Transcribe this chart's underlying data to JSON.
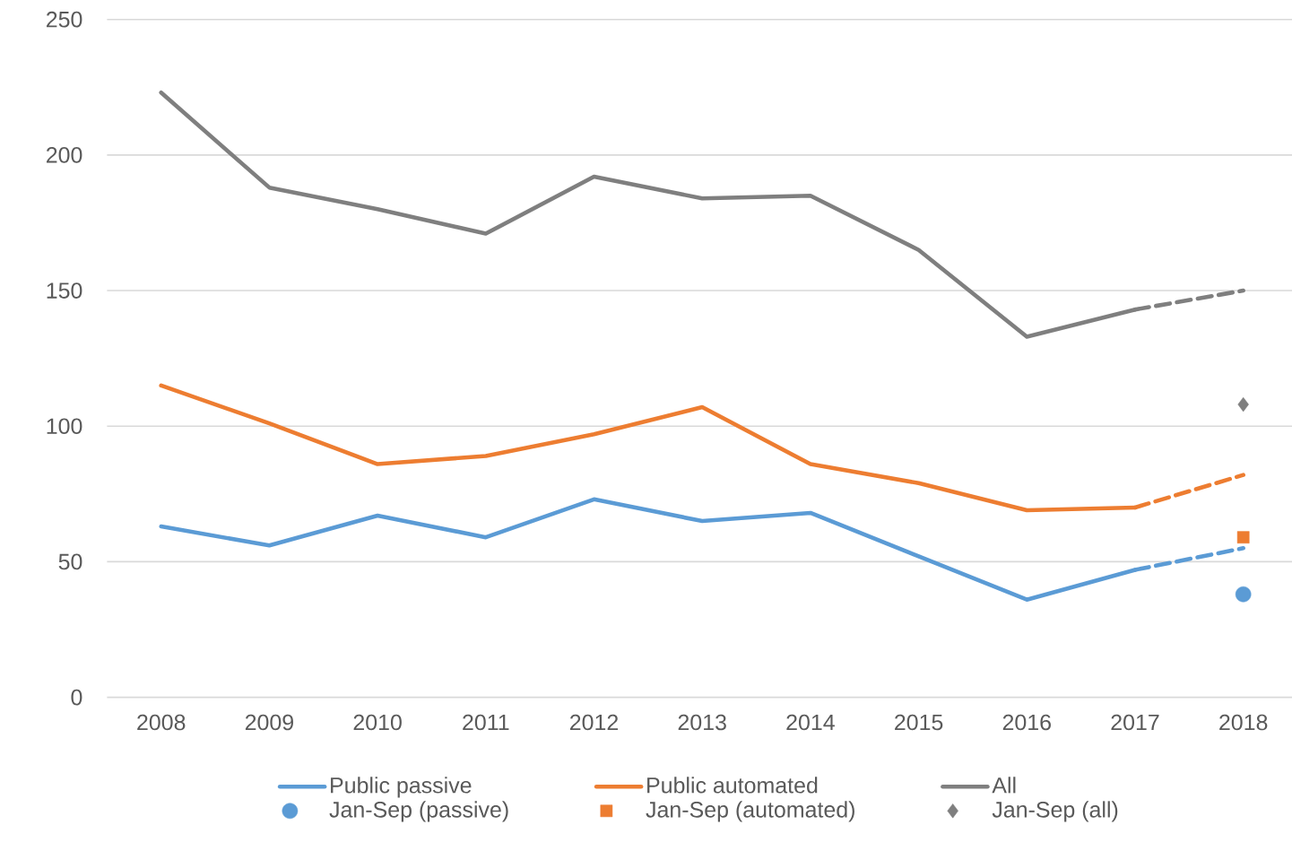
{
  "chart_data": {
    "type": "line",
    "x": [
      2008,
      2009,
      2010,
      2011,
      2012,
      2013,
      2014,
      2015,
      2016,
      2017,
      2018
    ],
    "xlim": [
      2007.5,
      2018.45
    ],
    "xticks": [
      2008,
      2009,
      2010,
      2011,
      2012,
      2013,
      2014,
      2015,
      2016,
      2017,
      2018
    ],
    "ylim": [
      0,
      250
    ],
    "yticks": [
      0,
      50,
      100,
      150,
      200,
      250
    ],
    "grid": "y",
    "legend": "bottom",
    "series": [
      {
        "name": "Public passive",
        "color": "#5b9bd5",
        "line_style": "solid",
        "values": [
          63,
          56,
          67,
          59,
          73,
          65,
          68,
          52,
          36,
          47,
          null
        ]
      },
      {
        "name": "Public automated",
        "color": "#ed7d31",
        "line_style": "solid",
        "values": [
          115,
          101,
          86,
          89,
          97,
          107,
          86,
          79,
          69,
          70,
          null
        ]
      },
      {
        "name": "All",
        "color": "#7f7f7f",
        "line_style": "solid",
        "values": [
          223,
          188,
          180,
          171,
          192,
          184,
          185,
          165,
          133,
          143,
          null
        ]
      },
      {
        "name": "Jan-Sep (passive)",
        "type": "scatter",
        "marker": "circle",
        "color": "#5b9bd5",
        "values": [
          null,
          null,
          null,
          null,
          null,
          null,
          null,
          null,
          null,
          null,
          38
        ]
      },
      {
        "name": "Jan-Sep (automated)",
        "type": "scatter",
        "marker": "square",
        "color": "#ed7d31",
        "values": [
          null,
          null,
          null,
          null,
          null,
          null,
          null,
          null,
          null,
          null,
          59
        ]
      },
      {
        "name": "Jan-Sep (all)",
        "type": "scatter",
        "marker": "diamond",
        "color": "#7f7f7f",
        "values": [
          null,
          null,
          null,
          null,
          null,
          null,
          null,
          null,
          null,
          null,
          108
        ]
      },
      {
        "color": "#5b9bd5",
        "line_style": "dashed",
        "values": [
          null,
          null,
          null,
          null,
          null,
          null,
          null,
          null,
          null,
          47,
          55
        ]
      },
      {
        "color": "#ed7d31",
        "line_style": "dashed",
        "values": [
          null,
          null,
          null,
          null,
          null,
          null,
          null,
          null,
          null,
          70,
          82
        ]
      },
      {
        "color": "#7f7f7f",
        "line_style": "dashed",
        "values": [
          null,
          null,
          null,
          null,
          null,
          null,
          null,
          null,
          null,
          143,
          150
        ]
      }
    ]
  }
}
